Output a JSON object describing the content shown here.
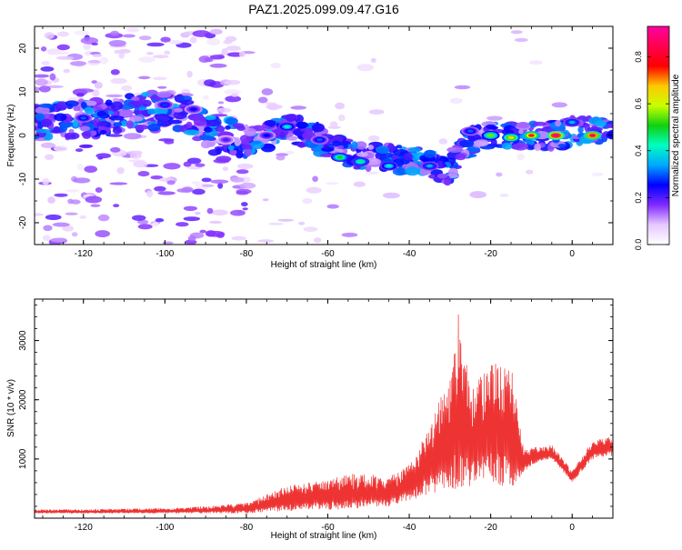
{
  "figure": {
    "title": "PAZ1.2025.099.09.47.G16"
  },
  "chart_data": [
    {
      "type": "heatmap",
      "title": "PAZ1.2025.099.09.47.G16",
      "xlabel": "Height of straight line (km)",
      "ylabel": "Frequency (Hz)",
      "xlim": [
        -132,
        10
      ],
      "ylim": [
        -25,
        25
      ],
      "x_ticks": [
        -120,
        -100,
        -80,
        -60,
        -40,
        -20,
        0
      ],
      "y_ticks": [
        -20,
        -10,
        0,
        10,
        20
      ],
      "colorbar": {
        "label": "Normalized spectral amplitude",
        "range": [
          0,
          0.93
        ],
        "ticks": [
          0.0,
          0.2,
          0.4,
          0.6,
          0.8
        ],
        "colors": [
          "#ffffff",
          "#e6c8ff",
          "#7f2aff",
          "#0000ff",
          "#00a8ff",
          "#00ffc0",
          "#10d010",
          "#c8ff00",
          "#ffc800",
          "#ff0000",
          "#ff0050",
          "#ff00a0"
        ]
      },
      "ridge": [
        {
          "x": -130,
          "y": 3
        },
        {
          "x": -120,
          "y": 4
        },
        {
          "x": -110,
          "y": 5
        },
        {
          "x": -100,
          "y": 6
        },
        {
          "x": -95,
          "y": 5
        },
        {
          "x": -88,
          "y": 0
        },
        {
          "x": -80,
          "y": -1
        },
        {
          "x": -75,
          "y": 0
        },
        {
          "x": -70,
          "y": 2
        },
        {
          "x": -62,
          "y": -1
        },
        {
          "x": -55,
          "y": -4
        },
        {
          "x": -50,
          "y": -5
        },
        {
          "x": -45,
          "y": -5
        },
        {
          "x": -40,
          "y": -6
        },
        {
          "x": -35,
          "y": -6
        },
        {
          "x": -30,
          "y": -8
        },
        {
          "x": -27,
          "y": -3
        },
        {
          "x": -22,
          "y": 0
        },
        {
          "x": -15,
          "y": 0
        },
        {
          "x": -5,
          "y": 0
        },
        {
          "x": 0,
          "y": 1
        },
        {
          "x": 5,
          "y": 1
        },
        {
          "x": 10,
          "y": 0
        }
      ],
      "peaks": [
        {
          "x": -4,
          "y": 0,
          "amplitude": 0.9
        },
        {
          "x": 5,
          "y": 0,
          "amplitude": 0.85
        },
        {
          "x": -10,
          "y": 0,
          "amplitude": 0.75
        },
        {
          "x": -15,
          "y": -0.5,
          "amplitude": 0.65
        },
        {
          "x": -20,
          "y": 0,
          "amplitude": 0.55
        },
        {
          "x": -57,
          "y": -5,
          "amplitude": 0.5
        },
        {
          "x": -52,
          "y": -6,
          "amplitude": 0.45
        },
        {
          "x": -45,
          "y": -7,
          "amplitude": 0.4
        },
        {
          "x": -70,
          "y": 2,
          "amplitude": 0.4
        },
        {
          "x": -35,
          "y": -7,
          "amplitude": 0.35
        },
        {
          "x": 0,
          "y": 3,
          "amplitude": 0.35
        },
        {
          "x": -25,
          "y": 1,
          "amplitude": 0.3
        },
        {
          "x": -62,
          "y": -1,
          "amplitude": 0.3
        },
        {
          "x": -120,
          "y": 4,
          "amplitude": 0.3
        },
        {
          "x": -100,
          "y": 7,
          "amplitude": 0.28
        },
        {
          "x": -93,
          "y": 6,
          "amplitude": 0.25
        },
        {
          "x": -75,
          "y": 0,
          "amplitude": 0.25
        },
        {
          "x": -85,
          "y": -1,
          "amplitude": 0.2
        }
      ]
    },
    {
      "type": "line",
      "xlabel": "Height of straight line (km)",
      "ylabel": "SNR (10 * v/v)",
      "xlim": [
        -132,
        10
      ],
      "ylim": [
        0,
        3700
      ],
      "x_ticks": [
        -120,
        -100,
        -80,
        -60,
        -40,
        -20,
        0
      ],
      "y_ticks": [
        1000,
        2000,
        3000
      ],
      "color": "#ee3333",
      "envelope": [
        {
          "x": -132,
          "y": 150
        },
        {
          "x": -120,
          "y": 150
        },
        {
          "x": -100,
          "y": 170
        },
        {
          "x": -90,
          "y": 200
        },
        {
          "x": -80,
          "y": 260
        },
        {
          "x": -75,
          "y": 400
        },
        {
          "x": -70,
          "y": 550
        },
        {
          "x": -60,
          "y": 650
        },
        {
          "x": -55,
          "y": 750
        },
        {
          "x": -50,
          "y": 750
        },
        {
          "x": -45,
          "y": 700
        },
        {
          "x": -40,
          "y": 900
        },
        {
          "x": -35,
          "y": 1600
        },
        {
          "x": -30,
          "y": 2400
        },
        {
          "x": -28,
          "y": 3500
        },
        {
          "x": -25,
          "y": 2200
        },
        {
          "x": -20,
          "y": 2600
        },
        {
          "x": -15,
          "y": 2700
        },
        {
          "x": -12,
          "y": 1200
        },
        {
          "x": -8,
          "y": 1200
        },
        {
          "x": -5,
          "y": 1250
        },
        {
          "x": 0,
          "y": 800
        },
        {
          "x": 3,
          "y": 1100
        },
        {
          "x": 5,
          "y": 1300
        },
        {
          "x": 10,
          "y": 1400
        }
      ],
      "baseline": [
        {
          "x": -132,
          "y": 80
        },
        {
          "x": -80,
          "y": 80
        },
        {
          "x": -70,
          "y": 120
        },
        {
          "x": -55,
          "y": 150
        },
        {
          "x": -45,
          "y": 200
        },
        {
          "x": -35,
          "y": 400
        },
        {
          "x": -28,
          "y": 500
        },
        {
          "x": -20,
          "y": 600
        },
        {
          "x": -15,
          "y": 500
        },
        {
          "x": -10,
          "y": 900
        },
        {
          "x": -5,
          "y": 1000
        },
        {
          "x": 0,
          "y": 600
        },
        {
          "x": 5,
          "y": 1000
        },
        {
          "x": 10,
          "y": 1050
        }
      ]
    }
  ]
}
